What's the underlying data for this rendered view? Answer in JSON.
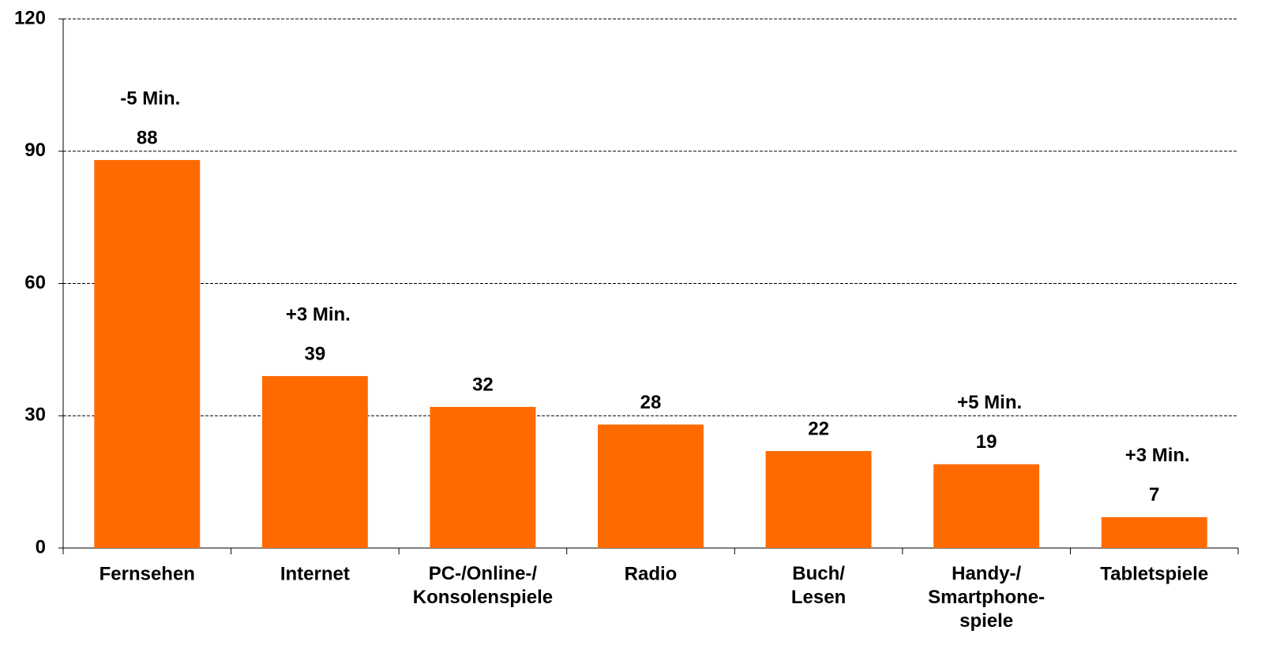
{
  "chart_data": {
    "type": "bar",
    "categories": [
      "Fernsehen",
      "Internet",
      "PC-/Online-/\nKonsolenspiele",
      "Radio",
      "Buch/\nLesen",
      "Handy-/\nSmartphone-\nspiele",
      "Tabletspiele"
    ],
    "values": [
      88,
      39,
      32,
      28,
      22,
      19,
      7
    ],
    "color": "#ff6a00",
    "ylim": [
      0,
      120
    ],
    "yticks": [
      0,
      30,
      60,
      90,
      120
    ],
    "grid": true,
    "annotations": [
      {
        "text": "-5 Min.",
        "category": "Fernsehen"
      },
      {
        "text": "+3 Min.",
        "category": "Internet"
      },
      {
        "text": "+5 Min.",
        "category": "Handy-/\nSmartphone-\nspiele"
      },
      {
        "text": "+3 Min.",
        "category": "Tabletspiele"
      }
    ]
  }
}
